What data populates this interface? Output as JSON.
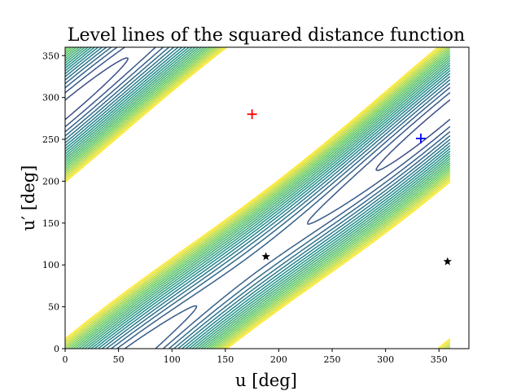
{
  "chart_data": {
    "type": "contour",
    "title": "Level lines of the squared distance function",
    "xlabel": "u [deg]",
    "ylabel": "u′ [deg]",
    "xlim": [
      0,
      378
    ],
    "ylim": [
      0,
      360
    ],
    "domain_x": [
      0,
      360
    ],
    "domain_y": [
      0,
      360
    ],
    "xticks": [
      0,
      50,
      100,
      150,
      200,
      250,
      300,
      350
    ],
    "yticks": [
      0,
      50,
      100,
      150,
      200,
      250,
      300,
      350
    ],
    "grid": false,
    "colormap": "viridis",
    "colormap_stops": [
      "#440154",
      "#3b528b",
      "#21918c",
      "#5ec962",
      "#fde725"
    ],
    "levels": [
      0.002,
      0.004,
      0.006,
      0.008,
      0.01,
      0.012,
      0.014,
      0.016,
      0.018,
      0.02,
      0.022,
      0.024,
      0.026,
      0.028,
      0.03,
      0.032,
      0.034,
      0.036,
      0.038,
      0.04,
      0.042,
      0.044,
      0.046,
      0.048,
      0.05,
      0.052,
      0.054,
      0.056,
      0.058,
      0.06
    ],
    "maximum_point": {
      "u": 175,
      "u_prime": 280,
      "marker": "+",
      "color": "#ff0000"
    },
    "other_markers": [
      {
        "u": 333,
        "u_prime": 251,
        "marker": "+",
        "color": "#0000ff"
      },
      {
        "u": 188,
        "u_prime": 110,
        "marker": "star",
        "color": "#000000"
      },
      {
        "u": 358,
        "u_prime": 104,
        "marker": "star",
        "color": "#000000"
      }
    ]
  }
}
